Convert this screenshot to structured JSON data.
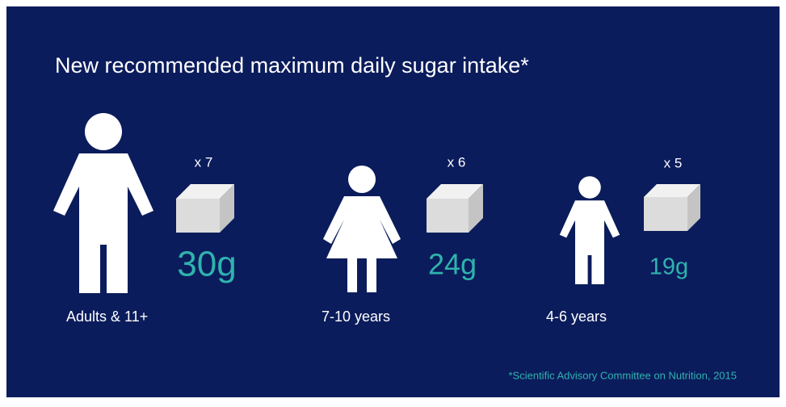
{
  "title": "New recommended maximum daily sugar intake*",
  "groups": [
    {
      "label": "Adults & 11+",
      "cubes": "x 7",
      "amount": "30g"
    },
    {
      "label": "7-10 years",
      "cubes": "x 6",
      "amount": "24g"
    },
    {
      "label": "4-6 years",
      "cubes": "x 5",
      "amount": "19g"
    }
  ],
  "footnote": "*Scientific Advisory Committee on Nutrition, 2015"
}
